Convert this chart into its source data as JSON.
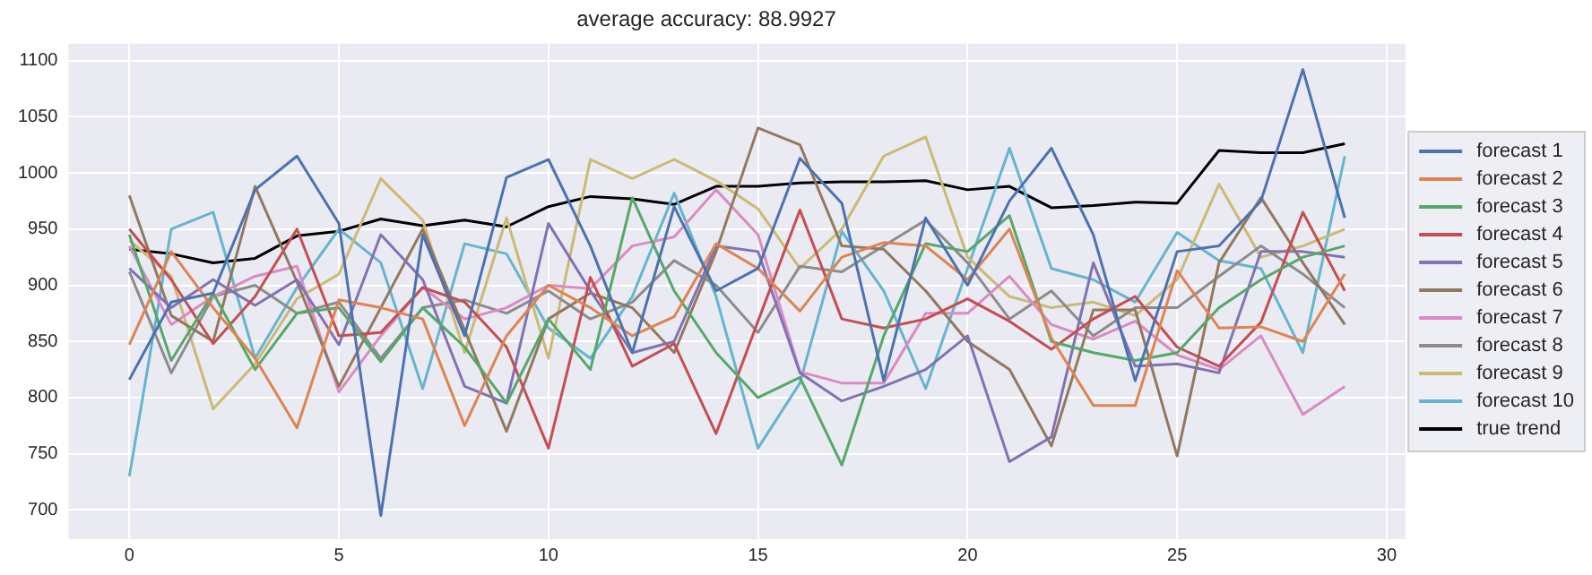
{
  "chart_data": {
    "type": "line",
    "title": "average accuracy: 88.9927",
    "x": [
      0,
      1,
      2,
      3,
      4,
      5,
      6,
      7,
      8,
      9,
      10,
      11,
      12,
      13,
      14,
      15,
      16,
      17,
      18,
      19,
      20,
      21,
      22,
      23,
      24,
      25,
      26,
      27,
      28,
      29
    ],
    "series": [
      {
        "name": "forecast 1",
        "color": "#4c72b0",
        "values": [
          816,
          885,
          893,
          985,
          1015,
          955,
          695,
          945,
          855,
          996,
          1012,
          935,
          840,
          970,
          895,
          915,
          1013,
          973,
          815,
          960,
          900,
          975,
          1022,
          945,
          815,
          930,
          935,
          975,
          1092,
          960
        ]
      },
      {
        "name": "forecast 2",
        "color": "#dd8452",
        "values": [
          847,
          930,
          880,
          835,
          773,
          887,
          880,
          870,
          775,
          855,
          900,
          880,
          855,
          872,
          937,
          915,
          877,
          925,
          938,
          935,
          905,
          950,
          853,
          793,
          793,
          913,
          862,
          863,
          850,
          910
        ]
      },
      {
        "name": "forecast 3",
        "color": "#55a868",
        "values": [
          945,
          833,
          893,
          825,
          875,
          880,
          832,
          880,
          845,
          795,
          870,
          825,
          978,
          895,
          840,
          800,
          818,
          740,
          855,
          937,
          930,
          962,
          850,
          840,
          833,
          840,
          880,
          905,
          925,
          935
        ]
      },
      {
        "name": "forecast 4",
        "color": "#c44e52",
        "values": [
          950,
          905,
          848,
          890,
          950,
          855,
          858,
          898,
          885,
          845,
          755,
          907,
          828,
          848,
          768,
          868,
          967,
          870,
          862,
          870,
          888,
          868,
          843,
          870,
          890,
          845,
          828,
          867,
          965,
          895
        ]
      },
      {
        "name": "forecast 5",
        "color": "#8172b3",
        "values": [
          915,
          880,
          905,
          882,
          905,
          847,
          945,
          905,
          810,
          795,
          955,
          895,
          840,
          850,
          935,
          930,
          822,
          797,
          810,
          825,
          855,
          743,
          765,
          920,
          828,
          830,
          822,
          930,
          930,
          925
        ]
      },
      {
        "name": "forecast 6",
        "color": "#937860",
        "values": [
          980,
          873,
          850,
          988,
          903,
          810,
          880,
          950,
          860,
          770,
          870,
          893,
          880,
          840,
          930,
          1040,
          1025,
          935,
          932,
          895,
          850,
          825,
          757,
          878,
          878,
          748,
          920,
          978,
          920,
          865
        ]
      },
      {
        "name": "forecast 7",
        "color": "#da8bc3",
        "values": [
          935,
          865,
          890,
          908,
          917,
          805,
          855,
          898,
          870,
          880,
          900,
          897,
          935,
          943,
          985,
          945,
          823,
          813,
          813,
          875,
          875,
          908,
          865,
          852,
          868,
          838,
          825,
          855,
          785,
          810
        ]
      },
      {
        "name": "forecast 8",
        "color": "#8c8c8c",
        "values": [
          912,
          822,
          890,
          900,
          875,
          885,
          835,
          880,
          887,
          875,
          895,
          870,
          885,
          922,
          900,
          858,
          917,
          912,
          935,
          958,
          920,
          870,
          895,
          855,
          880,
          880,
          908,
          935,
          910,
          880
        ]
      },
      {
        "name": "forecast 9",
        "color": "#ccb974",
        "values": [
          940,
          908,
          790,
          830,
          888,
          910,
          995,
          958,
          840,
          960,
          835,
          1012,
          995,
          1012,
          993,
          968,
          915,
          950,
          1015,
          1032,
          925,
          890,
          880,
          885,
          873,
          905,
          990,
          925,
          935,
          950
        ]
      },
      {
        "name": "forecast 10",
        "color": "#64b5cd",
        "values": [
          730,
          950,
          965,
          835,
          898,
          950,
          920,
          808,
          937,
          928,
          862,
          835,
          890,
          982,
          890,
          755,
          813,
          948,
          895,
          808,
          915,
          1022,
          915,
          905,
          885,
          947,
          922,
          915,
          840,
          1015
        ]
      },
      {
        "name": "true trend",
        "color": "#000000",
        "values": [
          932,
          928,
          920,
          924,
          944,
          948,
          959,
          953,
          958,
          952,
          970,
          979,
          977,
          972,
          988,
          988,
          991,
          992,
          992,
          993,
          985,
          988,
          969,
          971,
          974,
          973,
          1020,
          1018,
          1018,
          1026
        ]
      }
    ],
    "xlim": [
      -1.45,
      30.45
    ],
    "xticks": [
      0,
      5,
      10,
      15,
      20,
      25,
      30
    ],
    "ylim": [
      674,
      1115
    ],
    "yticks": [
      700,
      750,
      800,
      850,
      900,
      950,
      1000,
      1050,
      1100
    ],
    "grid": true,
    "legend": "right",
    "marker": "none",
    "line_style": "solid"
  }
}
